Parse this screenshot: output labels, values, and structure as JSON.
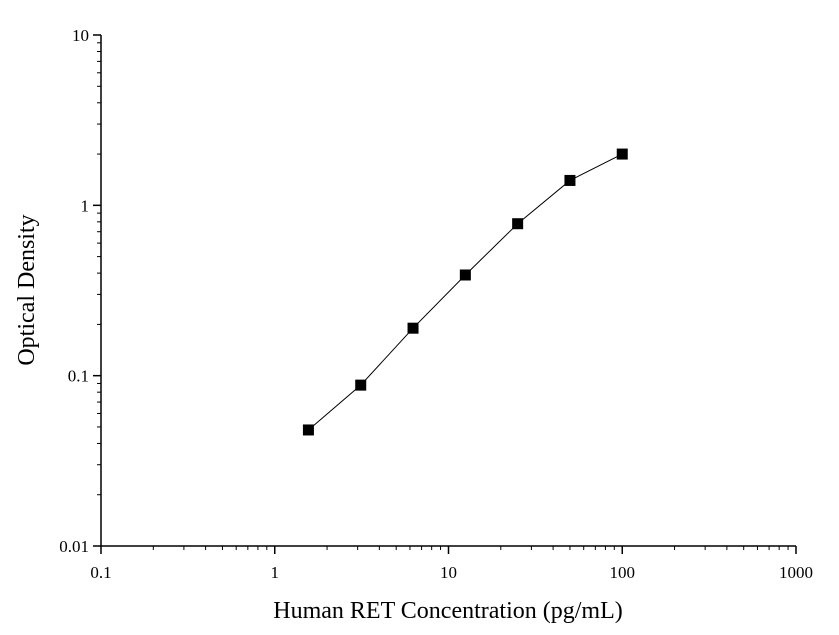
{
  "chart_data": {
    "type": "scatter",
    "title": "",
    "xlabel": "Human RET Concentration (pg/mL)",
    "ylabel": "Optical Density",
    "xscale": "log",
    "yscale": "log",
    "xlim": [
      0.1,
      1000
    ],
    "ylim": [
      0.01,
      10
    ],
    "x_ticks": [
      "0.1",
      "1",
      "10",
      "100",
      "1000"
    ],
    "y_ticks": [
      "0.01",
      "0.1",
      "1",
      "10"
    ],
    "grid": false,
    "legend": "none",
    "series": [
      {
        "x": [
          1.5625,
          3.125,
          6.25,
          12.5,
          25,
          50,
          100
        ],
        "y": [
          0.048,
          0.088,
          0.19,
          0.39,
          0.78,
          1.4,
          2.0
        ],
        "marker": "square",
        "line": true
      }
    ],
    "colors": {
      "marker": "#000000",
      "line": "#000000",
      "axis": "#000000"
    }
  }
}
